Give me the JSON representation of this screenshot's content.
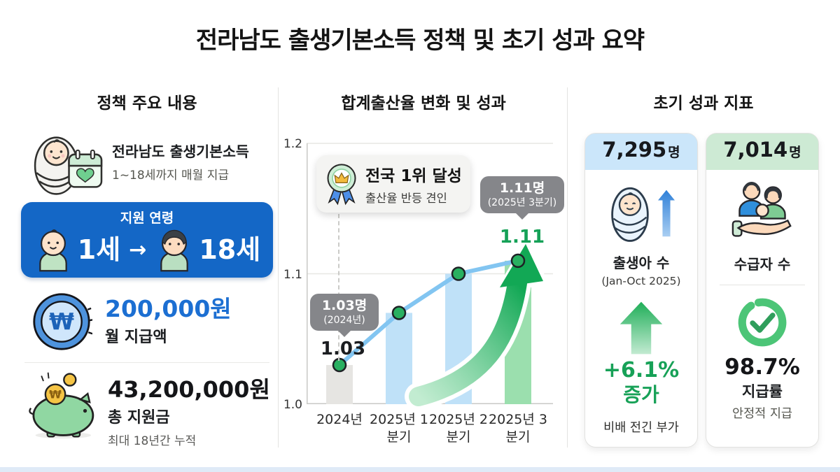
{
  "title": "전라남도 출생기본소득 정책 및 초기 성과 요약",
  "colors": {
    "primary_blue": "#1467c6",
    "accent_blue": "#1c6fd2",
    "accent_green": "#17a157",
    "callout_gray": "#85868a",
    "card1_header_bg": "#cbe6fa",
    "card2_header_bg": "#cdead4"
  },
  "policy": {
    "header": "정책 주요 내용",
    "program_name": "전라남도 출생기본소득",
    "program_desc": "1~18세까지 매월 지급",
    "age": {
      "header": "지원 연령",
      "from": "1세",
      "arrow": "→",
      "to": "18세"
    },
    "monthly": {
      "amount": "200,000원",
      "label": "월 지급액"
    },
    "total": {
      "amount": "43,200,000원",
      "label": "총 지원금",
      "note": "최대 18년간 누적"
    }
  },
  "chart": {
    "header": "합계출산율 변화 및 성과",
    "badge": {
      "title": "전국 1위 달성",
      "subtitle": "출산율 반등 견인"
    },
    "callout_start": {
      "value": "1.03명",
      "period": "(2024년)"
    },
    "callout_end": {
      "value": "1.11명",
      "period": "(2025년 3분기)"
    },
    "start_label": "1.03",
    "end_label": "1.11",
    "chart_data": {
      "type": "bar+line",
      "title": "합계출산율 변화 및 성과",
      "categories": [
        "2024년",
        "2025년 1분기",
        "2025년 2분기",
        "2025년 3분기"
      ],
      "values": [
        1.03,
        1.07,
        1.1,
        1.11
      ],
      "ylim": [
        1.0,
        1.2
      ],
      "ytick_labels": [
        "1.0",
        "1.1",
        "1.2"
      ],
      "bar_colors": [
        "#e6e5e2",
        "#bfe1f8",
        "#bfe1f8",
        "#9bdfae"
      ],
      "line_color": "#82c5f1",
      "marker_color": "#29b061",
      "grid": "horizontal",
      "legend": "none"
    }
  },
  "metrics": {
    "header": "초기 성과 지표",
    "births": {
      "value": "7,295",
      "unit": "명",
      "label": "출생아 수",
      "period": "(Jan-Oct 2025)",
      "change": "+6.1%",
      "change_word": "증가",
      "note": "비배 전긴 부가"
    },
    "recipients": {
      "value": "7,014",
      "unit": "명",
      "label": "수급자 수",
      "rate": "98.7%",
      "rate_label": "지급률",
      "note": "안정적 지급"
    }
  }
}
